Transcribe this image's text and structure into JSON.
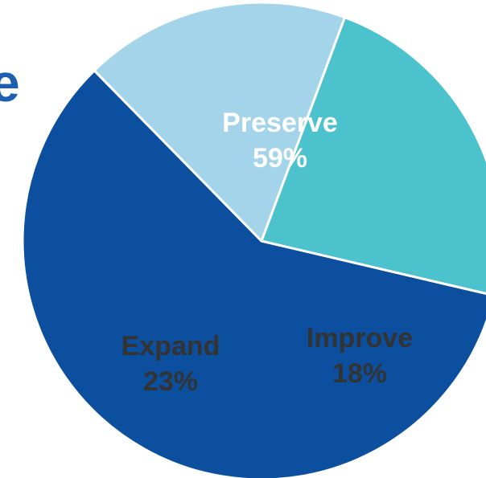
{
  "page_fragment": {
    "text": "e"
  },
  "chart_data": {
    "type": "pie",
    "slices": [
      {
        "label": "Preserve",
        "display": "59%",
        "value": 59,
        "color": "#0b4f9e",
        "text_color": "#ffffff"
      },
      {
        "label": "Improve",
        "display": "18%",
        "value": 18,
        "color": "#a3d4ea",
        "text_color": "#333333"
      },
      {
        "label": "Expand",
        "display": "23%",
        "value": 23,
        "color": "#4cc2cc",
        "text_color": "#333333"
      }
    ]
  }
}
